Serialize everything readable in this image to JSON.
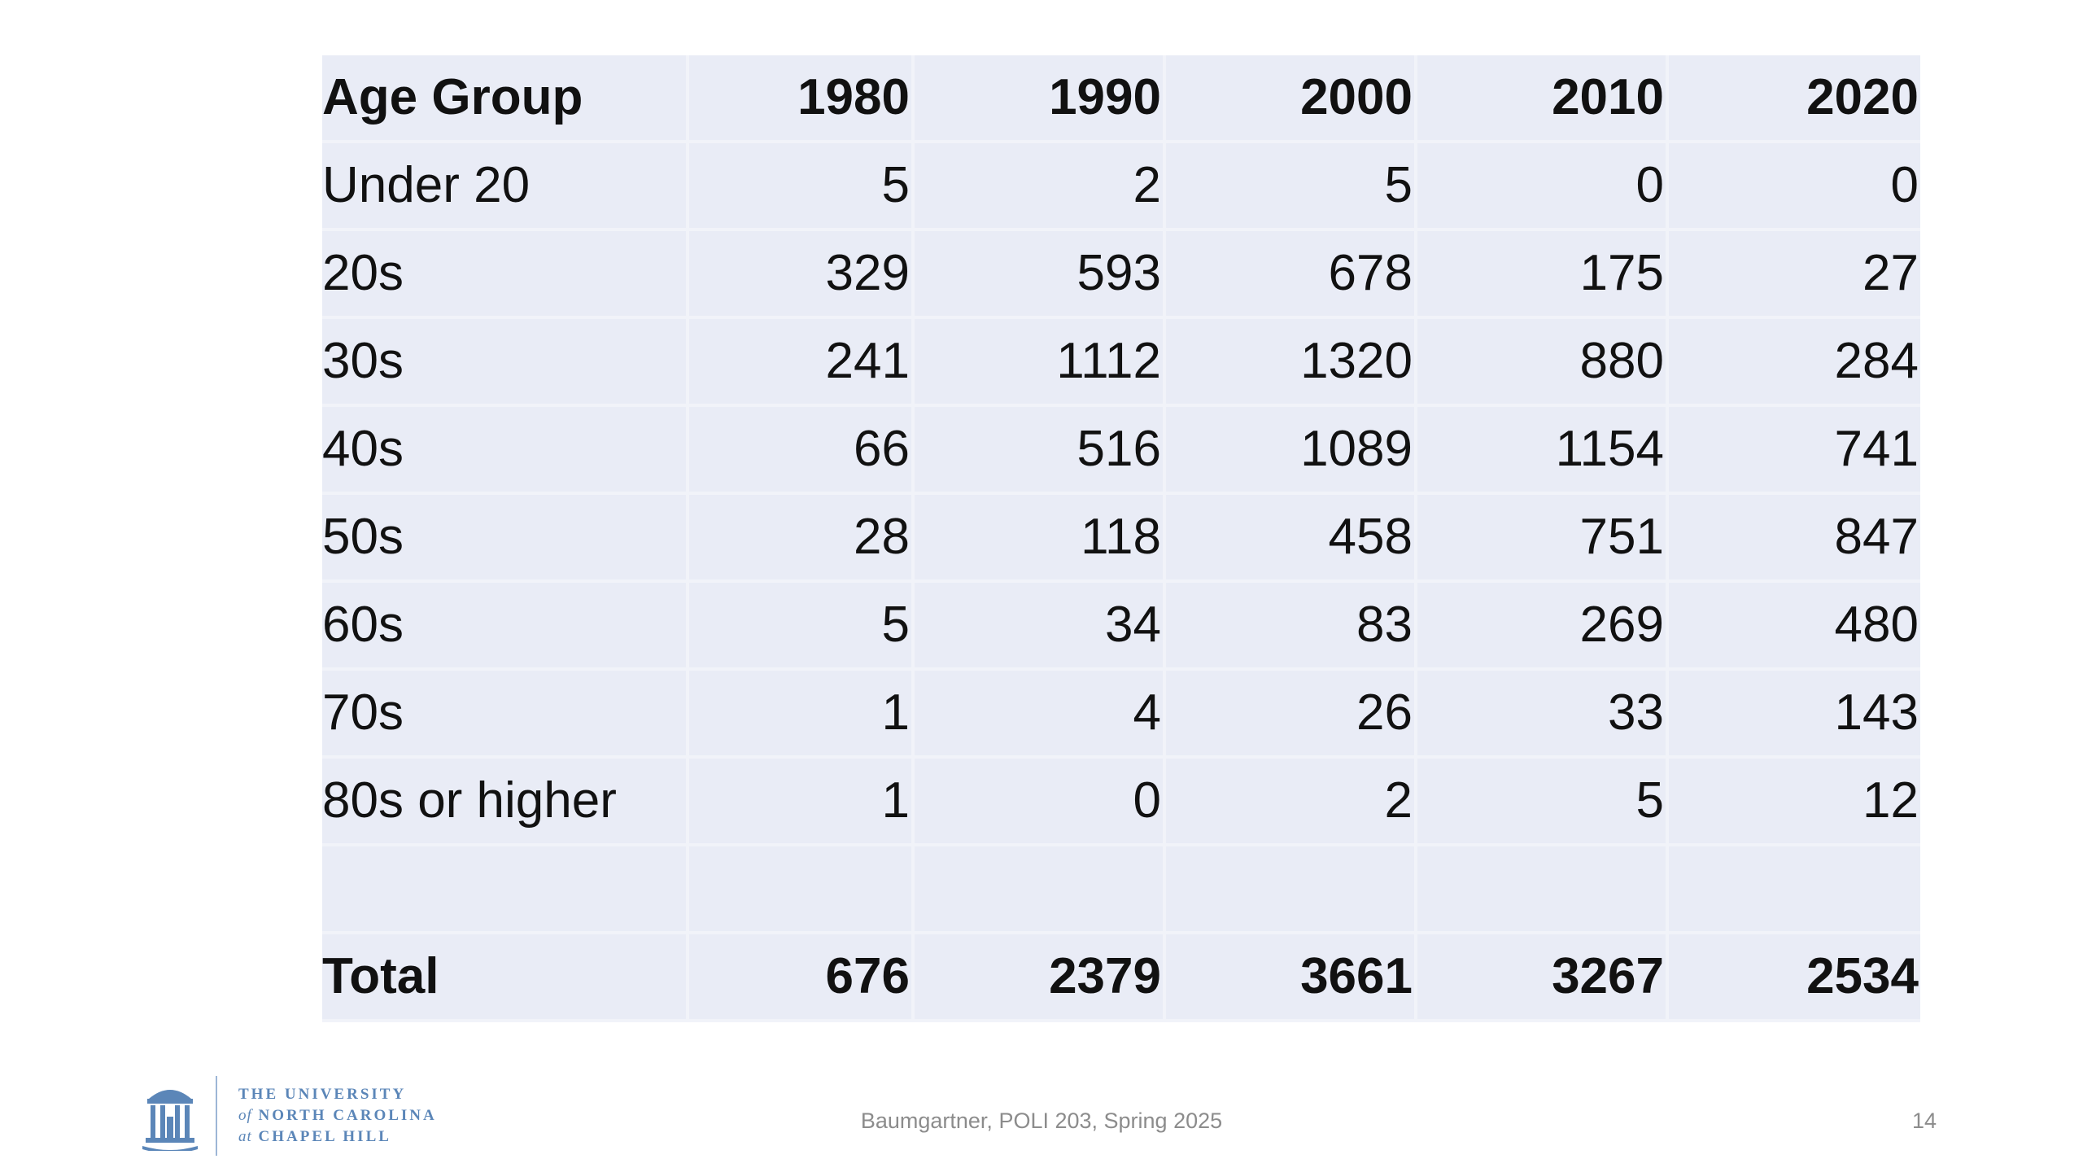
{
  "table": {
    "header": [
      "Age Group",
      "1980",
      "1990",
      "2000",
      "2010",
      "2020"
    ],
    "rows": [
      [
        "Under 20",
        "5",
        "2",
        "5",
        "0",
        "0"
      ],
      [
        "20s",
        "329",
        "593",
        "678",
        "175",
        "27"
      ],
      [
        "30s",
        "241",
        "1112",
        "1320",
        "880",
        "284"
      ],
      [
        "40s",
        "66",
        "516",
        "1089",
        "1154",
        "741"
      ],
      [
        "50s",
        "28",
        "118",
        "458",
        "751",
        "847"
      ],
      [
        "60s",
        "5",
        "34",
        "83",
        "269",
        "480"
      ],
      [
        "70s",
        "1",
        "4",
        "26",
        "33",
        "143"
      ],
      [
        "80s or higher",
        "1",
        "0",
        "2",
        "5",
        "12"
      ],
      [
        "",
        "",
        "",
        "",
        "",
        ""
      ]
    ],
    "total": [
      "Total",
      "676",
      "2379",
      "3661",
      "3267",
      "2534"
    ]
  },
  "footer": {
    "logo_line1": "THE UNIVERSITY",
    "logo_line2_prefix": "of",
    "logo_line2": "NORTH CAROLINA",
    "logo_line3_prefix": "at",
    "logo_line3": "CHAPEL HILL",
    "center_text": "Baumgartner, POLI 203, Spring 2025",
    "page_number": "14"
  },
  "colors": {
    "cell_background": "#e9ecf6",
    "cell_border": "#f1f3f9",
    "logo_blue": "#5b86b8"
  }
}
